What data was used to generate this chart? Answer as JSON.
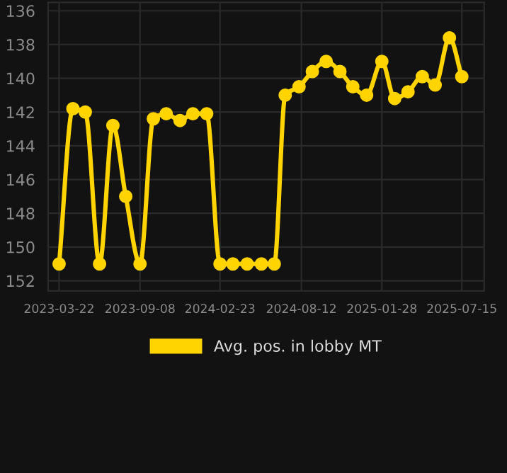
{
  "chart_data": {
    "type": "line",
    "x": [
      "2023-03-22",
      "2023-04-20",
      "2023-05-16",
      "2023-06-15",
      "2023-07-13",
      "2023-08-09",
      "2023-09-08",
      "2023-10-06",
      "2023-11-02",
      "2023-12-01",
      "2023-12-28",
      "2024-01-26",
      "2024-02-23",
      "2024-03-21",
      "2024-04-20",
      "2024-05-20",
      "2024-06-16",
      "2024-07-09",
      "2024-08-07",
      "2024-09-04",
      "2024-10-03",
      "2024-11-01",
      "2024-11-28",
      "2024-12-27",
      "2025-01-28",
      "2025-02-24",
      "2025-03-24",
      "2025-04-23",
      "2025-05-20",
      "2025-06-19",
      "2025-07-15"
    ],
    "series": [
      {
        "name": "Avg. pos. in lobby MT",
        "color": "#ffd400",
        "values": [
          151.0,
          141.8,
          142.0,
          151.0,
          142.8,
          147.0,
          151.0,
          142.4,
          142.1,
          142.5,
          142.1,
          142.1,
          151.0,
          151.0,
          151.0,
          151.0,
          151.0,
          141.0,
          140.5,
          139.6,
          139.0,
          139.6,
          140.5,
          141.0,
          139.0,
          141.2,
          140.8,
          139.9,
          140.4,
          137.6,
          139.9
        ]
      }
    ],
    "xlim": [
      "2023-02-27",
      "2025-08-31"
    ],
    "xticks": [
      "2023-03-22",
      "2023-09-08",
      "2024-02-23",
      "2024-08-12",
      "2025-01-28",
      "2025-07-15"
    ],
    "ylim": [
      152.6,
      135.5
    ],
    "yticks": [
      136,
      138,
      140,
      142,
      144,
      146,
      148,
      150,
      152
    ],
    "grid": true,
    "legend": "bottom",
    "marker": "circle",
    "line_style": "solid"
  }
}
